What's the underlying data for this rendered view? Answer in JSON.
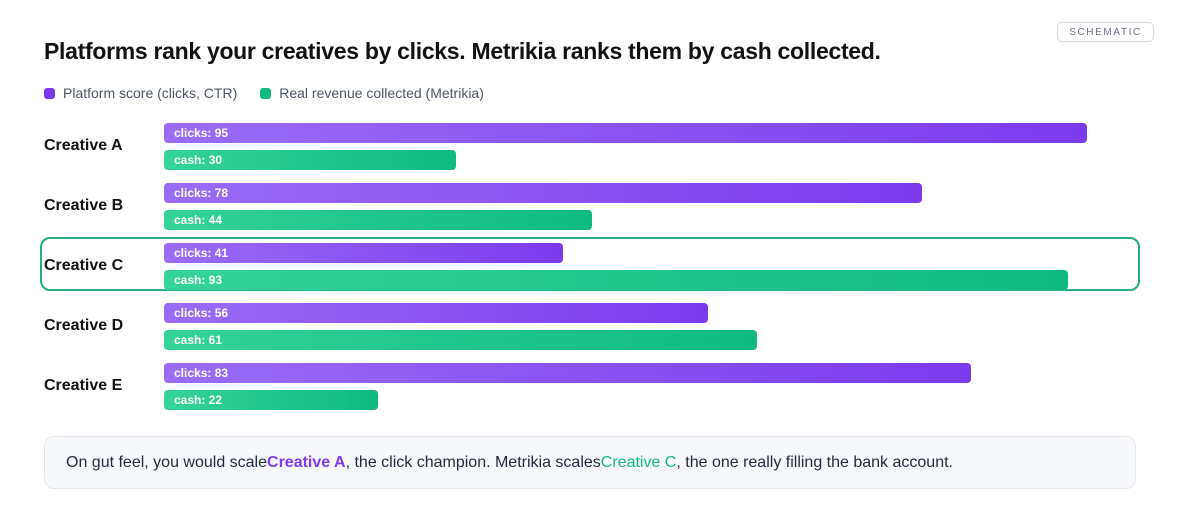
{
  "badge": "SCHEMATIC",
  "title": "Platforms rank your creatives by clicks. Metrikia ranks them by cash collected.",
  "legend": {
    "clicks": "Platform score (clicks, CTR)",
    "cash": "Real revenue collected (Metrikia)"
  },
  "colors": {
    "clicks": "#7c3aed",
    "cash": "#10b981",
    "highlight": "#22b07d"
  },
  "chart_data": {
    "type": "bar",
    "orientation": "horizontal",
    "categories": [
      "Creative A",
      "Creative B",
      "Creative C",
      "Creative D",
      "Creative E"
    ],
    "series": [
      {
        "name": "Platform score (clicks, CTR)",
        "key": "clicks",
        "prefix": "clicks: ",
        "values": [
          95,
          78,
          41,
          56,
          83
        ]
      },
      {
        "name": "Real revenue collected (Metrikia)",
        "key": "cash",
        "prefix": "cash: ",
        "values": [
          30,
          44,
          93,
          61,
          22
        ]
      }
    ],
    "xlim": [
      0,
      100
    ],
    "grid": false,
    "legend": "top-left",
    "highlighted_category": "Creative C"
  },
  "note": {
    "part1": "On gut feel, you would scale ",
    "creative_a": "Creative A",
    "part2": ", the click champion. Metrikia scales ",
    "creative_c": "Creative C",
    "part3": ", the one really filling the bank account."
  }
}
